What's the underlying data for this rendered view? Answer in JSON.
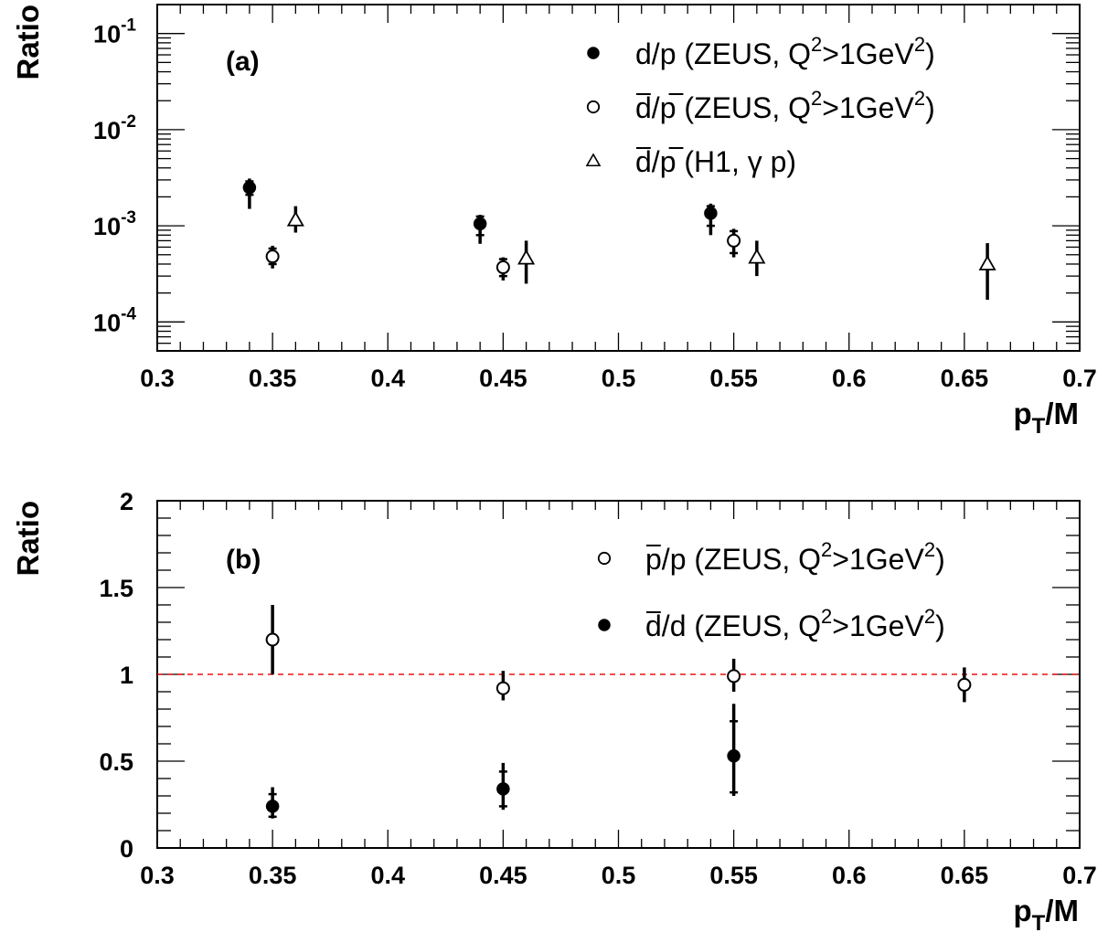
{
  "chart_data": [
    {
      "type": "scatter",
      "panel_label": "(a)",
      "xlabel": "p_T/M",
      "ylabel": "Ratio",
      "xlim": [
        0.3,
        0.7
      ],
      "ylim": [
        5e-05,
        0.2
      ],
      "yscale": "log",
      "x_tick_labels": [
        "0.3",
        "0.35",
        "0.4",
        "0.45",
        "0.5",
        "0.55",
        "0.6",
        "0.65",
        "0.7"
      ],
      "y_tick_labels": [
        {
          "base": "10",
          "exp": "-4"
        },
        {
          "base": "10",
          "exp": "-3"
        },
        {
          "base": "10",
          "exp": "-2"
        },
        {
          "base": "10",
          "exp": "-1"
        }
      ],
      "legend_position": "top-right",
      "series": [
        {
          "name": "d/p (ZEUS, Q²>1GeV²)",
          "marker": "filled-circle",
          "points": [
            {
              "x": 0.34,
              "y": 0.0025,
              "lo": 0.0015,
              "hi": 0.0031,
              "syst_lo": 0.0021,
              "syst_hi": 0.0029
            },
            {
              "x": 0.44,
              "y": 0.00105,
              "lo": 0.00065,
              "hi": 0.0013,
              "syst_lo": 0.0008,
              "syst_hi": 0.00125
            },
            {
              "x": 0.54,
              "y": 0.00135,
              "lo": 0.0008,
              "hi": 0.0017,
              "syst_lo": 0.001,
              "syst_hi": 0.0016
            }
          ]
        },
        {
          "name": "d̄/p̄ (ZEUS, Q²>1GeV²)",
          "marker": "open-circle",
          "points": [
            {
              "x": 0.35,
              "y": 0.00048,
              "lo": 0.00036,
              "hi": 0.00062,
              "syst_lo": 0.0004,
              "syst_hi": 0.00058
            },
            {
              "x": 0.45,
              "y": 0.00037,
              "lo": 0.00027,
              "hi": 0.00047,
              "syst_lo": 0.0003,
              "syst_hi": 0.00045
            },
            {
              "x": 0.55,
              "y": 0.0007,
              "lo": 0.00047,
              "hi": 0.00093,
              "syst_lo": 0.00052,
              "syst_hi": 0.00088
            }
          ]
        },
        {
          "name": "d̄/p̄ (H1, γ p)",
          "marker": "open-triangle",
          "points": [
            {
              "x": 0.36,
              "y": 0.00115,
              "lo": 0.00085,
              "hi": 0.0016
            },
            {
              "x": 0.46,
              "y": 0.00046,
              "lo": 0.00025,
              "hi": 0.0007
            },
            {
              "x": 0.56,
              "y": 0.00047,
              "lo": 0.0003,
              "hi": 0.0007
            },
            {
              "x": 0.66,
              "y": 0.0004,
              "lo": 0.00017,
              "hi": 0.00066
            }
          ]
        }
      ],
      "legend": [
        {
          "marker": "filled-circle",
          "text": "d/p (ZEUS, Q",
          "sup1": "2",
          "mid": ">1GeV",
          "sup2": "2",
          "end": ")"
        },
        {
          "marker": "open-circle",
          "text": "d/p (ZEUS, Q",
          "sup1": "2",
          "mid": ">1GeV",
          "sup2": "2",
          "end": ")",
          "overline": "d-and-p"
        },
        {
          "marker": "open-triangle",
          "text": "d/p (H1, γ p)",
          "overline": "d-and-p"
        }
      ]
    },
    {
      "type": "scatter",
      "panel_label": "(b)",
      "xlabel": "p_T/M",
      "ylabel": "Ratio",
      "xlim": [
        0.3,
        0.7
      ],
      "ylim": [
        0,
        2
      ],
      "yscale": "linear",
      "x_tick_labels": [
        "0.3",
        "0.35",
        "0.4",
        "0.45",
        "0.5",
        "0.55",
        "0.6",
        "0.65",
        "0.7"
      ],
      "y_tick_labels": [
        "0",
        "0.5",
        "1",
        "1.5",
        "2"
      ],
      "reference_line": {
        "y": 1,
        "color": "#ee1111",
        "style": "dashed"
      },
      "legend_position": "top-right",
      "series": [
        {
          "name": "p̄/p (ZEUS, Q²>1GeV²)",
          "marker": "open-circle",
          "points": [
            {
              "x": 0.35,
              "y": 1.2,
              "lo": 1.0,
              "hi": 1.4
            },
            {
              "x": 0.45,
              "y": 0.92,
              "lo": 0.85,
              "hi": 1.02
            },
            {
              "x": 0.55,
              "y": 0.99,
              "lo": 0.9,
              "hi": 1.09
            },
            {
              "x": 0.65,
              "y": 0.94,
              "lo": 0.84,
              "hi": 1.04
            }
          ]
        },
        {
          "name": "d̄/d (ZEUS, Q²>1GeV²)",
          "marker": "filled-circle",
          "points": [
            {
              "x": 0.35,
              "y": 0.24,
              "lo": 0.17,
              "hi": 0.35,
              "syst_lo": 0.18,
              "syst_hi": 0.31
            },
            {
              "x": 0.45,
              "y": 0.34,
              "lo": 0.22,
              "hi": 0.49,
              "syst_lo": 0.24,
              "syst_hi": 0.44
            },
            {
              "x": 0.55,
              "y": 0.53,
              "lo": 0.3,
              "hi": 0.83,
              "syst_lo": 0.32,
              "syst_hi": 0.73
            }
          ]
        }
      ],
      "legend": [
        {
          "marker": "open-circle",
          "text": "p/p (ZEUS, Q",
          "sup1": "2",
          "mid": ">1GeV",
          "sup2": "2",
          "end": ")",
          "overline": "first-p"
        },
        {
          "marker": "filled-circle",
          "text": "d/d (ZEUS, Q",
          "sup1": "2",
          "mid": ">1GeV",
          "sup2": "2",
          "end": ")",
          "overline": "first-d"
        }
      ]
    }
  ]
}
